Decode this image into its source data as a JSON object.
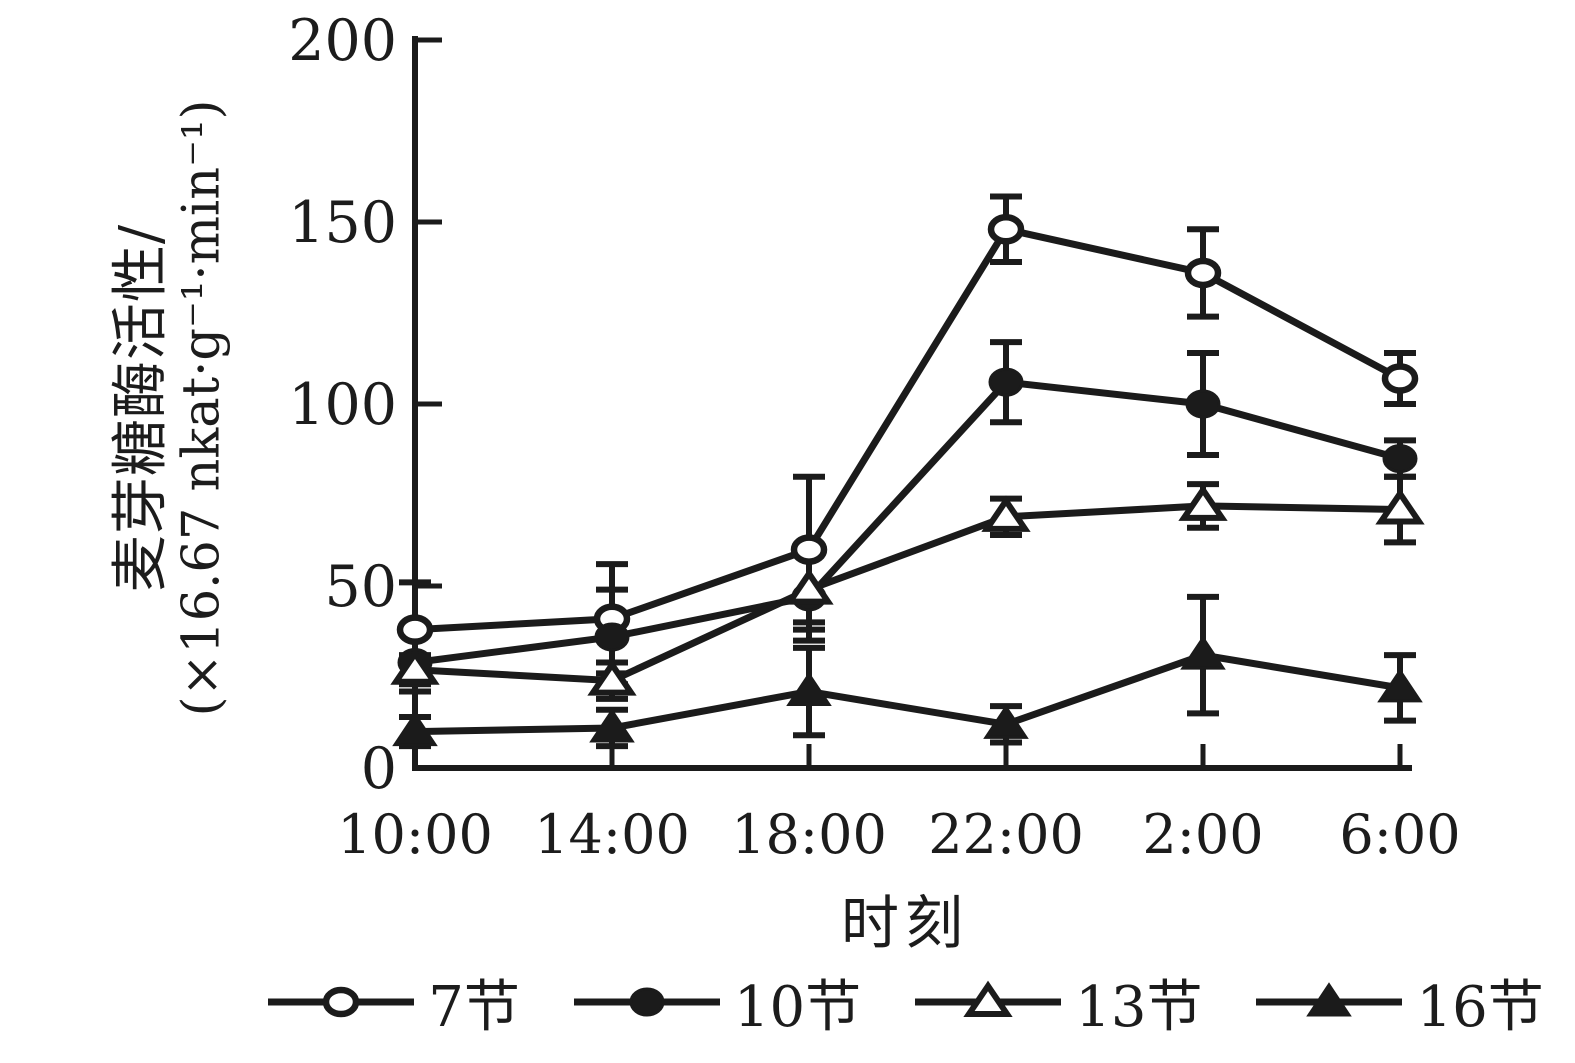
{
  "figure_title": "",
  "axes": {
    "y_label_line1": "麦芽糖酶活性/",
    "y_label_line2": "(×16.67 nkat·g⁻¹·min⁻¹)",
    "x_label": "时刻"
  },
  "chart_data": {
    "type": "line",
    "title": "",
    "xlabel": "时刻",
    "ylabel": "麦芽糖酶活性/(×16.67 nkat·g⁻¹·min⁻¹)",
    "categories": [
      "10:00",
      "14:00",
      "18:00",
      "22:00",
      "2:00",
      "6:00"
    ],
    "y_ticks": [
      0,
      50,
      100,
      150,
      200
    ],
    "ylim": [
      0,
      200
    ],
    "grid": false,
    "legend_position": "bottom",
    "error_bars": true,
    "series": [
      {
        "name": "7节",
        "marker": "circle-open",
        "values": [
          38,
          41,
          60,
          148,
          136,
          107
        ],
        "errors": [
          13,
          15,
          20,
          9,
          12,
          7
        ]
      },
      {
        "name": "10节",
        "marker": "circle-filled",
        "values": [
          29,
          36,
          47,
          106,
          100,
          85
        ],
        "errors": [
          8,
          13,
          12,
          11,
          14,
          5
        ]
      },
      {
        "name": "13节",
        "marker": "triangle-open",
        "values": [
          27,
          24,
          49,
          69,
          72,
          71
        ],
        "errors": [
          4,
          5,
          11,
          5,
          6,
          9
        ]
      },
      {
        "name": "16节",
        "marker": "triangle-filled",
        "values": [
          10,
          11,
          21,
          12,
          31,
          22
        ],
        "errors": [
          4,
          5,
          12,
          5,
          16,
          9
        ]
      }
    ]
  },
  "colors": {
    "stroke": "#1b1b1b",
    "background": "#ffffff"
  }
}
